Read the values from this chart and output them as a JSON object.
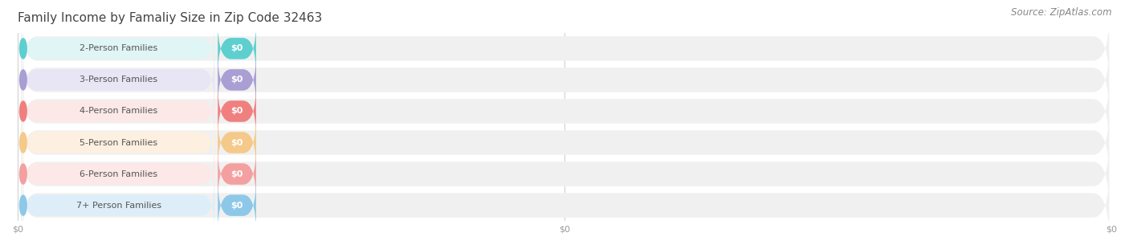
{
  "title": "Family Income by Famaliy Size in Zip Code 32463",
  "source": "Source: ZipAtlas.com",
  "categories": [
    "2-Person Families",
    "3-Person Families",
    "4-Person Families",
    "5-Person Families",
    "6-Person Families",
    "7+ Person Families"
  ],
  "values": [
    0,
    0,
    0,
    0,
    0,
    0
  ],
  "bar_colors": [
    "#5ecfcf",
    "#a99fd4",
    "#f08080",
    "#f5c98a",
    "#f4a0a0",
    "#8ec8e8"
  ],
  "label_bg_colors": [
    "#e0f5f5",
    "#e8e5f5",
    "#fde8e8",
    "#fdf0e0",
    "#fde8e8",
    "#ddeef8"
  ],
  "value_label": "$0",
  "background_color": "#ffffff",
  "plot_bg_color": "#f2f2f2",
  "title_fontsize": 11,
  "source_fontsize": 8.5,
  "label_fontsize": 8,
  "value_fontsize": 8,
  "tick_fontsize": 8
}
